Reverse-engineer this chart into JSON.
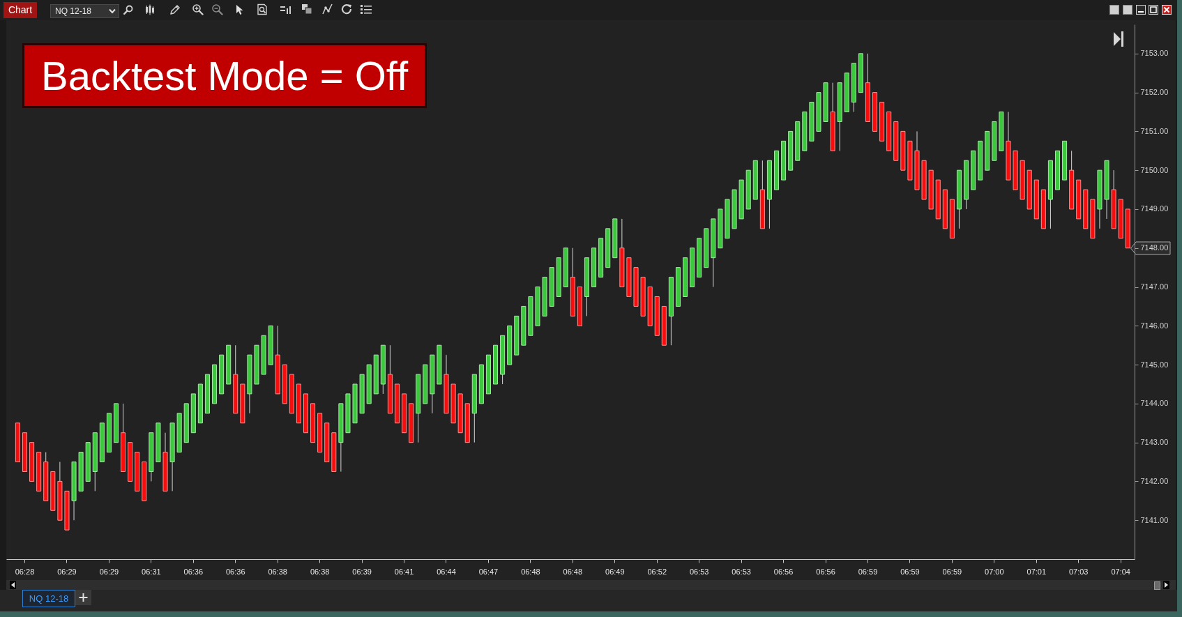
{
  "chart_data": {
    "type": "candlestick",
    "title": "Backtest Mode = Off",
    "categories": [
      null,
      "06:28",
      null,
      null,
      null,
      null,
      null,
      "06:29",
      null,
      null,
      null,
      null,
      null,
      "06:29",
      null,
      null,
      null,
      null,
      null,
      "06:31",
      null,
      null,
      null,
      null,
      null,
      "06:36",
      null,
      null,
      null,
      null,
      null,
      "06:36",
      null,
      null,
      null,
      null,
      null,
      "06:38",
      null,
      null,
      null,
      null,
      null,
      "06:38",
      null,
      null,
      null,
      null,
      null,
      "06:39",
      null,
      null,
      null,
      null,
      null,
      "06:41",
      null,
      null,
      null,
      null,
      null,
      "06:44",
      null,
      null,
      null,
      null,
      null,
      "06:47",
      null,
      null,
      null,
      null,
      null,
      "06:48",
      null,
      null,
      null,
      null,
      null,
      "06:48",
      null,
      null,
      null,
      null,
      null,
      "06:49",
      null,
      null,
      null,
      null,
      null,
      "06:52",
      null,
      null,
      null,
      null,
      null,
      "06:53",
      null,
      null,
      null,
      null,
      null,
      "06:53",
      null,
      null,
      null,
      null,
      null,
      "06:56",
      null,
      null,
      null,
      null,
      null,
      "06:56",
      null,
      null,
      null,
      null,
      null,
      "06:59",
      null,
      null,
      null,
      null,
      null,
      "06:59",
      null,
      null,
      null,
      null,
      null,
      "06:59",
      null,
      null,
      null,
      null,
      null,
      "07:00",
      null,
      null,
      null,
      null,
      null,
      "07:01",
      null,
      null,
      null,
      null,
      null,
      "07:03",
      null,
      null,
      null,
      null,
      null,
      "07:04",
      null
    ],
    "ohlc": [
      [
        7143.5,
        7143.5,
        7142.5,
        7142.5
      ],
      [
        7143.25,
        7143.25,
        7142.25,
        7142.25
      ],
      [
        7143,
        7143,
        7142,
        7142
      ],
      [
        7142.75,
        7142.75,
        7141.75,
        7141.75
      ],
      [
        7142.5,
        7142.75,
        7141.5,
        7141.5
      ],
      [
        7142.25,
        7142.25,
        7141.25,
        7141.25
      ],
      [
        7142,
        7142.5,
        7141,
        7141
      ],
      [
        7141.75,
        7141.75,
        7140.75,
        7140.75
      ],
      [
        7141.5,
        7142.5,
        7141,
        7142.5
      ],
      [
        7141.75,
        7142.75,
        7141.75,
        7142.75
      ],
      [
        7142,
        7143,
        7142,
        7143
      ],
      [
        7142.25,
        7143.25,
        7141.75,
        7143.25
      ],
      [
        7142.5,
        7143.5,
        7142.5,
        7143.5
      ],
      [
        7142.75,
        7143.75,
        7142.75,
        7143.75
      ],
      [
        7143,
        7144,
        7143,
        7144
      ],
      [
        7143.25,
        7144,
        7142.25,
        7142.25
      ],
      [
        7143,
        7143,
        7142,
        7142
      ],
      [
        7142.75,
        7142.75,
        7141.75,
        7141.75
      ],
      [
        7142.5,
        7142.5,
        7141.5,
        7141.5
      ],
      [
        7142.25,
        7143.25,
        7142,
        7143.25
      ],
      [
        7142.5,
        7143.5,
        7142.5,
        7143.5
      ],
      [
        7142.75,
        7143.25,
        7141.75,
        7141.75
      ],
      [
        7142.5,
        7143.5,
        7141.75,
        7143.5
      ],
      [
        7142.75,
        7143.75,
        7142.75,
        7143.75
      ],
      [
        7143,
        7144,
        7143,
        7144
      ],
      [
        7143.25,
        7144.25,
        7143.25,
        7144.25
      ],
      [
        7143.5,
        7144.5,
        7143.5,
        7144.5
      ],
      [
        7143.75,
        7144.75,
        7143.75,
        7144.75
      ],
      [
        7144,
        7145,
        7144,
        7145
      ],
      [
        7144.25,
        7145.25,
        7144.25,
        7145.25
      ],
      [
        7144.5,
        7145.5,
        7144.5,
        7145.5
      ],
      [
        7144.75,
        7145.5,
        7143.75,
        7143.75
      ],
      [
        7144.5,
        7144.5,
        7143.5,
        7143.5
      ],
      [
        7144.25,
        7145.25,
        7143.75,
        7145.25
      ],
      [
        7144.5,
        7145.5,
        7144.5,
        7145.5
      ],
      [
        7144.75,
        7145.75,
        7144.75,
        7145.75
      ],
      [
        7145,
        7146,
        7145,
        7146
      ],
      [
        7145.25,
        7146,
        7144.25,
        7144.25
      ],
      [
        7145,
        7145,
        7144,
        7144
      ],
      [
        7144.75,
        7144.75,
        7143.75,
        7143.75
      ],
      [
        7144.5,
        7144.5,
        7143.5,
        7143.5
      ],
      [
        7144.25,
        7144.25,
        7143.25,
        7143.25
      ],
      [
        7144,
        7144,
        7143,
        7143
      ],
      [
        7143.75,
        7143.75,
        7142.75,
        7142.75
      ],
      [
        7143.5,
        7143.5,
        7142.5,
        7142.5
      ],
      [
        7143.25,
        7143.25,
        7142.25,
        7142.25
      ],
      [
        7143,
        7144,
        7142.25,
        7144
      ],
      [
        7143.25,
        7144.25,
        7143.25,
        7144.25
      ],
      [
        7143.5,
        7144.5,
        7143.5,
        7144.5
      ],
      [
        7143.75,
        7144.75,
        7143.75,
        7144.75
      ],
      [
        7144,
        7145,
        7144,
        7145
      ],
      [
        7144.25,
        7145.25,
        7144.25,
        7145.25
      ],
      [
        7144.5,
        7145.5,
        7144.25,
        7145.5
      ],
      [
        7144.75,
        7145.5,
        7143.75,
        7143.75
      ],
      [
        7144.5,
        7144.5,
        7143.5,
        7143.5
      ],
      [
        7144.25,
        7144.25,
        7143.25,
        7143.25
      ],
      [
        7144,
        7144,
        7143,
        7143
      ],
      [
        7143.75,
        7144.75,
        7143,
        7144.75
      ],
      [
        7144,
        7145,
        7144,
        7145
      ],
      [
        7144.25,
        7145.25,
        7143.75,
        7145.25
      ],
      [
        7144.5,
        7145.5,
        7144.5,
        7145.5
      ],
      [
        7144.75,
        7145.25,
        7143.75,
        7143.75
      ],
      [
        7144.5,
        7144.5,
        7143.5,
        7143.5
      ],
      [
        7144.25,
        7144.25,
        7143.25,
        7143.25
      ],
      [
        7144,
        7144,
        7143,
        7143
      ],
      [
        7143.75,
        7144.75,
        7143,
        7144.75
      ],
      [
        7144,
        7145,
        7144,
        7145
      ],
      [
        7144.25,
        7145.25,
        7144.25,
        7145.25
      ],
      [
        7144.5,
        7145.5,
        7144.5,
        7145.5
      ],
      [
        7144.75,
        7145.75,
        7144.5,
        7145.75
      ],
      [
        7145,
        7146,
        7145,
        7146
      ],
      [
        7145.25,
        7146.25,
        7145.25,
        7146.25
      ],
      [
        7145.5,
        7146.5,
        7145.5,
        7146.5
      ],
      [
        7145.75,
        7146.75,
        7145.75,
        7146.75
      ],
      [
        7146,
        7147,
        7146,
        7147
      ],
      [
        7146.25,
        7147.25,
        7146.25,
        7147.25
      ],
      [
        7146.5,
        7147.5,
        7146.5,
        7147.5
      ],
      [
        7146.75,
        7147.75,
        7146.75,
        7147.75
      ],
      [
        7147,
        7148,
        7147,
        7148
      ],
      [
        7147.25,
        7148,
        7146.25,
        7146.25
      ],
      [
        7147,
        7147,
        7146,
        7146
      ],
      [
        7146.75,
        7147.75,
        7146.25,
        7147.75
      ],
      [
        7147,
        7148,
        7147,
        7148
      ],
      [
        7147.25,
        7148.25,
        7147.25,
        7148.25
      ],
      [
        7147.5,
        7148.5,
        7147.5,
        7148.5
      ],
      [
        7147.75,
        7148.75,
        7147.75,
        7148.75
      ],
      [
        7148,
        7148.75,
        7147,
        7147
      ],
      [
        7147.75,
        7147.75,
        7146.75,
        7146.75
      ],
      [
        7147.5,
        7147.5,
        7146.5,
        7146.5
      ],
      [
        7147.25,
        7147.25,
        7146.25,
        7146.25
      ],
      [
        7147,
        7147,
        7146,
        7146
      ],
      [
        7146.75,
        7146.75,
        7145.75,
        7145.75
      ],
      [
        7146.5,
        7146.5,
        7145.5,
        7145.5
      ],
      [
        7146.25,
        7147.25,
        7145.5,
        7147.25
      ],
      [
        7146.5,
        7147.5,
        7146.5,
        7147.5
      ],
      [
        7146.75,
        7147.75,
        7146.75,
        7147.75
      ],
      [
        7147,
        7148,
        7147,
        7148
      ],
      [
        7147.25,
        7148.25,
        7147.25,
        7148.25
      ],
      [
        7147.5,
        7148.5,
        7147.5,
        7148.5
      ],
      [
        7147.75,
        7148.75,
        7147,
        7148.75
      ],
      [
        7148,
        7149,
        7148,
        7149
      ],
      [
        7148.25,
        7149.25,
        7148.25,
        7149.25
      ],
      [
        7148.5,
        7149.5,
        7148.5,
        7149.5
      ],
      [
        7148.75,
        7149.75,
        7148.75,
        7149.75
      ],
      [
        7149,
        7150,
        7149,
        7150
      ],
      [
        7149.25,
        7150.25,
        7149.25,
        7150.25
      ],
      [
        7149.5,
        7150.25,
        7148.5,
        7148.5
      ],
      [
        7149.25,
        7150.25,
        7148.5,
        7150.25
      ],
      [
        7149.5,
        7150.5,
        7149.5,
        7150.5
      ],
      [
        7149.75,
        7150.75,
        7149.75,
        7150.75
      ],
      [
        7150,
        7151,
        7150,
        7151
      ],
      [
        7150.25,
        7151.25,
        7150.25,
        7151.25
      ],
      [
        7150.5,
        7151.5,
        7150.5,
        7151.5
      ],
      [
        7150.75,
        7151.75,
        7150.75,
        7151.75
      ],
      [
        7151,
        7152,
        7151,
        7152
      ],
      [
        7151.25,
        7152.25,
        7151.25,
        7152.25
      ],
      [
        7151.5,
        7152.25,
        7150.5,
        7150.5
      ],
      [
        7151.25,
        7152.25,
        7150.5,
        7152.25
      ],
      [
        7151.5,
        7152.5,
        7151.5,
        7152.5
      ],
      [
        7151.75,
        7152.75,
        7151.5,
        7152.75
      ],
      [
        7152,
        7153,
        7152,
        7153
      ],
      [
        7152.25,
        7153,
        7151.25,
        7151.25
      ],
      [
        7152,
        7152,
        7151,
        7151
      ],
      [
        7151.75,
        7151.75,
        7150.75,
        7150.75
      ],
      [
        7151.5,
        7151.5,
        7150.5,
        7150.5
      ],
      [
        7151.25,
        7151.25,
        7150.25,
        7150.25
      ],
      [
        7151,
        7151,
        7150,
        7150
      ],
      [
        7150.75,
        7150.75,
        7149.75,
        7149.75
      ],
      [
        7150.5,
        7151,
        7149.5,
        7149.5
      ],
      [
        7150.25,
        7150.25,
        7149.25,
        7149.25
      ],
      [
        7150,
        7150,
        7149,
        7149
      ],
      [
        7149.75,
        7149.75,
        7148.75,
        7148.75
      ],
      [
        7149.5,
        7149.5,
        7148.5,
        7148.5
      ],
      [
        7149.25,
        7149.25,
        7148.25,
        7148.25
      ],
      [
        7149,
        7150,
        7148.5,
        7150
      ],
      [
        7149.25,
        7150.25,
        7149,
        7150.25
      ],
      [
        7149.5,
        7150.5,
        7149.5,
        7150.5
      ],
      [
        7149.75,
        7150.75,
        7149.75,
        7150.75
      ],
      [
        7150,
        7151,
        7150,
        7151
      ],
      [
        7150.25,
        7151.25,
        7150.25,
        7151.25
      ],
      [
        7150.5,
        7151.5,
        7150.5,
        7151.5
      ],
      [
        7150.75,
        7151.5,
        7149.75,
        7149.75
      ],
      [
        7150.5,
        7150.5,
        7149.5,
        7149.5
      ],
      [
        7150.25,
        7150.25,
        7149.25,
        7149.25
      ],
      [
        7150,
        7150,
        7149,
        7149
      ],
      [
        7149.75,
        7149.75,
        7148.75,
        7148.75
      ],
      [
        7149.5,
        7149.5,
        7148.5,
        7148.5
      ],
      [
        7149.25,
        7150.25,
        7148.5,
        7150.25
      ],
      [
        7149.5,
        7150.5,
        7149.5,
        7150.5
      ],
      [
        7149.75,
        7150.75,
        7149.75,
        7150.75
      ],
      [
        7150,
        7150.5,
        7149,
        7149
      ],
      [
        7149.75,
        7149.75,
        7148.75,
        7148.75
      ],
      [
        7149.5,
        7149.5,
        7148.5,
        7148.5
      ],
      [
        7149.25,
        7149.25,
        7148.25,
        7148.25
      ],
      [
        7149,
        7150,
        7148.5,
        7150
      ],
      [
        7149.25,
        7150.25,
        7148.75,
        7150.25
      ],
      [
        7149.5,
        7150,
        7148.5,
        7148.5
      ],
      [
        7149.25,
        7149.25,
        7148.25,
        7148.25
      ],
      [
        7149,
        7149,
        7148,
        7148
      ]
    ],
    "colors": [
      "#f60d0d",
      "#f60d0d",
      "#f60d0d",
      "#f60d0d",
      "#f60d0d",
      "#f60d0d",
      "#f60d0d",
      "#f60d0d",
      "#3cc83c",
      "#3cc83c",
      "#3cc83c",
      "#3cc83c",
      "#3cc83c",
      "#3cc83c",
      "#3cc83c",
      "#f60d0d",
      "#f60d0d",
      "#f60d0d",
      "#f60d0d",
      "#3cc83c",
      "#3cc83c",
      "#f60d0d",
      "#3cc83c",
      "#3cc83c",
      "#3cc83c",
      "#3cc83c",
      "#3cc83c",
      "#3cc83c",
      "#3cc83c",
      "#3cc83c",
      "#3cc83c",
      "#f60d0d",
      "#f60d0d",
      "#3cc83c",
      "#3cc83c",
      "#3cc83c",
      "#3cc83c",
      "#f60d0d",
      "#f60d0d",
      "#f60d0d",
      "#f60d0d",
      "#f60d0d",
      "#f60d0d",
      "#f60d0d",
      "#f60d0d",
      "#f60d0d",
      "#3cc83c",
      "#3cc83c",
      "#3cc83c",
      "#3cc83c",
      "#3cc83c",
      "#3cc83c",
      "#3cc83c",
      "#f60d0d",
      "#f60d0d",
      "#f60d0d",
      "#f60d0d",
      "#3cc83c",
      "#3cc83c",
      "#3cc83c",
      "#3cc83c",
      "#f60d0d",
      "#f60d0d",
      "#f60d0d",
      "#f60d0d",
      "#3cc83c",
      "#3cc83c",
      "#3cc83c",
      "#3cc83c",
      "#3cc83c",
      "#3cc83c",
      "#3cc83c",
      "#3cc83c",
      "#3cc83c",
      "#3cc83c",
      "#3cc83c",
      "#3cc83c",
      "#3cc83c",
      "#3cc83c",
      "#f60d0d",
      "#f60d0d",
      "#3cc83c",
      "#3cc83c",
      "#3cc83c",
      "#3cc83c",
      "#3cc83c",
      "#f60d0d",
      "#f60d0d",
      "#f60d0d",
      "#f60d0d",
      "#f60d0d",
      "#f60d0d",
      "#f60d0d",
      "#3cc83c",
      "#3cc83c",
      "#3cc83c",
      "#3cc83c",
      "#3cc83c",
      "#3cc83c",
      "#3cc83c",
      "#3cc83c",
      "#3cc83c",
      "#3cc83c",
      "#3cc83c",
      "#3cc83c",
      "#3cc83c",
      "#f60d0d",
      "#3cc83c",
      "#3cc83c",
      "#3cc83c",
      "#3cc83c",
      "#3cc83c",
      "#3cc83c",
      "#3cc83c",
      "#3cc83c",
      "#3cc83c",
      "#f60d0d",
      "#3cc83c",
      "#3cc83c",
      "#3cc83c",
      "#3cc83c",
      "#f60d0d",
      "#f60d0d",
      "#f60d0d",
      "#f60d0d",
      "#f60d0d",
      "#f60d0d",
      "#f60d0d",
      "#f60d0d",
      "#f60d0d",
      "#f60d0d",
      "#f60d0d",
      "#f60d0d",
      "#f60d0d",
      "#3cc83c",
      "#3cc83c",
      "#3cc83c",
      "#3cc83c",
      "#3cc83c",
      "#3cc83c",
      "#3cc83c",
      "#f60d0d",
      "#f60d0d",
      "#f60d0d",
      "#f60d0d",
      "#f60d0d",
      "#f60d0d",
      "#3cc83c",
      "#3cc83c",
      "#3cc83c",
      "#f60d0d",
      "#f60d0d",
      "#f60d0d",
      "#f60d0d",
      "#3cc83c",
      "#3cc83c",
      "#f60d0d",
      "#f60d0d",
      "#f60d0d"
    ],
    "ylim": [
      7140,
      7153.75
    ],
    "yticks": [
      {
        "value": 7141,
        "label": "7141.00"
      },
      {
        "value": 7142,
        "label": "7142.00"
      },
      {
        "value": 7143,
        "label": "7143.00"
      },
      {
        "value": 7144,
        "label": "7144.00"
      },
      {
        "value": 7145,
        "label": "7145.00"
      },
      {
        "value": 7146,
        "label": "7146.00"
      },
      {
        "value": 7147,
        "label": "7147.00"
      },
      {
        "value": 7148,
        "label": "7148.00"
      },
      {
        "value": 7149,
        "label": "7149.00"
      },
      {
        "value": 7150,
        "label": "7150.00"
      },
      {
        "value": 7151,
        "label": "7151.00"
      },
      {
        "value": 7152,
        "label": "7152.00"
      },
      {
        "value": 7153,
        "label": "7153.00"
      }
    ],
    "annotations": [
      "Chart",
      "NQ 12-18",
      "NQ 12-18"
    ]
  }
}
